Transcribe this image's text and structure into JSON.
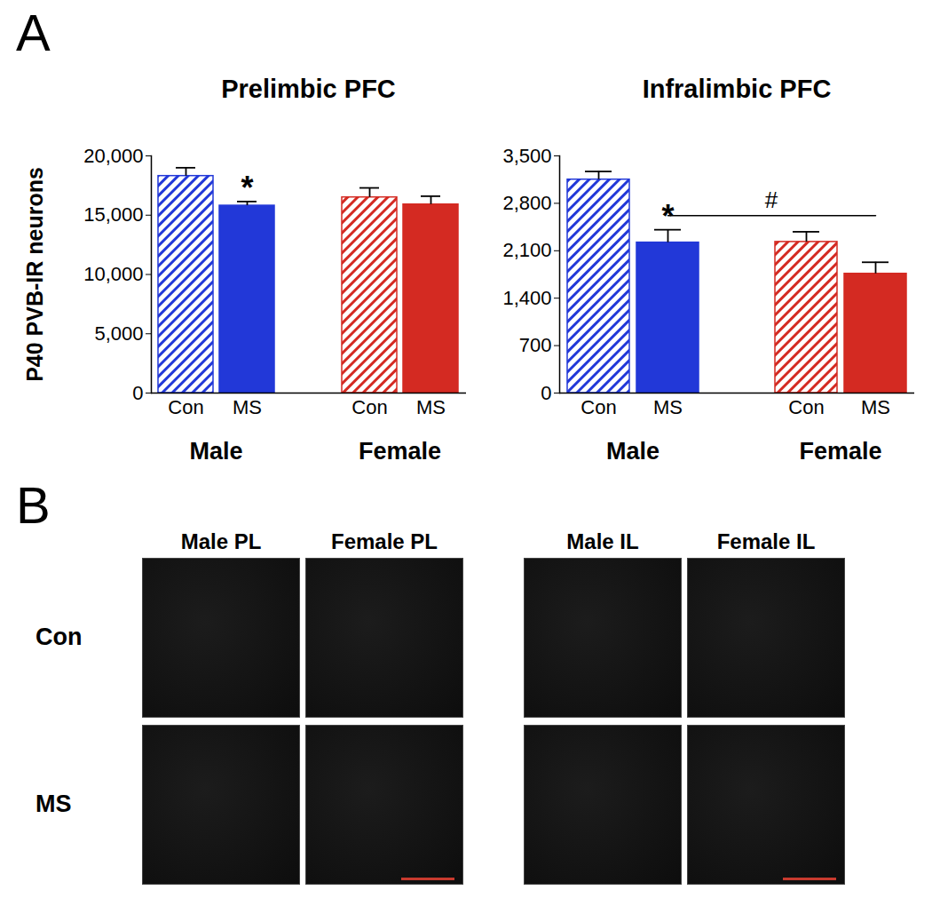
{
  "panel_labels": [
    "A",
    "B"
  ],
  "chart_data": [
    {
      "type": "bar",
      "title": "Prelimbic PFC",
      "y_label": "P40 PVB-IR neurons",
      "categories": [
        "Con",
        "MS",
        "Con",
        "MS"
      ],
      "groups": [
        "Male",
        "Male",
        "Female",
        "Female"
      ],
      "values": [
        18300,
        15800,
        16500,
        15900
      ],
      "errors": [
        700,
        350,
        800,
        700
      ],
      "colors": [
        "#2238d8",
        "#2238d8",
        "#d42a22",
        "#d42a22"
      ],
      "ylim": [
        0,
        20000
      ],
      "yticks": [
        0,
        {
          "value": 5000,
          "label": "5,000"
        },
        {
          "value": 10000,
          "label": "10,000"
        },
        {
          "value": 15000,
          "label": "15,000"
        },
        {
          "value": 20000,
          "label": "20,000"
        }
      ],
      "annotations": [
        {
          "text": "*",
          "index": 1
        }
      ]
    },
    {
      "type": "bar",
      "title": "Infralimbic PFC",
      "categories": [
        "Con",
        "MS",
        "Con",
        "MS"
      ],
      "groups": [
        "Male",
        "Male",
        "Female",
        "Female"
      ],
      "values": [
        3150,
        2220,
        2230,
        1760
      ],
      "errors": [
        120,
        190,
        150,
        170
      ],
      "colors": [
        "#2238d8",
        "#2238d8",
        "#d42a22",
        "#d42a22"
      ],
      "ylim": [
        0,
        3500
      ],
      "yticks": [
        0,
        700,
        {
          "value": 1400,
          "label": "1,400"
        },
        {
          "value": 2100,
          "label": "2,100"
        },
        {
          "value": 2800,
          "label": "2,800"
        },
        {
          "value": 3500,
          "label": "3,500"
        }
      ],
      "annotations": [
        {
          "text": "*",
          "index": 1
        }
      ],
      "brackets": [
        {
          "text": "#",
          "from": 1,
          "to": 3
        }
      ]
    }
  ],
  "micrographs": {
    "row_labels": [
      "Con",
      "MS"
    ],
    "column_labels": [
      "Male PL",
      "Female PL",
      "Male IL",
      "Female IL"
    ]
  }
}
